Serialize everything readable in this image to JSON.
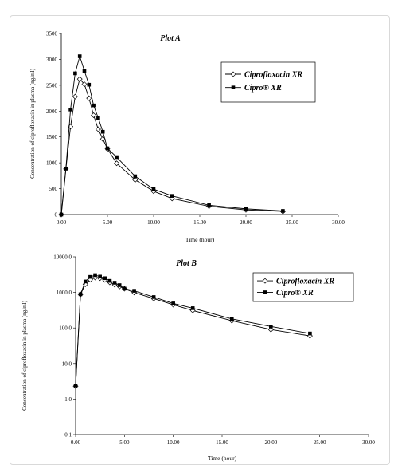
{
  "chart_data": [
    {
      "type": "line",
      "title": "Plot A",
      "xlabel": "Time (hour)",
      "ylabel": "Concentration of ciprofloxacin in plasma (ng/ml)",
      "xlim": [
        0,
        30
      ],
      "ylim": [
        0,
        3500
      ],
      "yscale": "linear",
      "x_ticks": [
        "0.00",
        "5.00",
        "10.00",
        "15.00",
        "20.00",
        "25.00",
        "30.00"
      ],
      "y_ticks": [
        "0",
        "500",
        "1000",
        "1500",
        "2000",
        "2500",
        "3000",
        "3500"
      ],
      "legend_position": "top-right",
      "series": [
        {
          "name": "Ciprofloxacin XR",
          "marker": "diamond-open",
          "x": [
            0,
            0.5,
            1,
            1.5,
            2,
            2.5,
            3,
            3.5,
            4,
            4.5,
            5,
            6,
            8,
            10,
            12,
            16,
            20,
            24
          ],
          "y": [
            0,
            880,
            1700,
            2280,
            2620,
            2520,
            2250,
            1920,
            1650,
            1460,
            1270,
            990,
            670,
            450,
            310,
            160,
            90,
            60
          ]
        },
        {
          "name": "Cipro® XR",
          "marker": "square-filled",
          "x": [
            0,
            0.5,
            1,
            1.5,
            2,
            2.5,
            3,
            3.5,
            4,
            4.5,
            5,
            6,
            8,
            10,
            12,
            16,
            20,
            24
          ],
          "y": [
            0,
            890,
            2030,
            2730,
            3060,
            2780,
            2510,
            2110,
            1870,
            1600,
            1280,
            1110,
            740,
            490,
            360,
            180,
            110,
            70
          ]
        }
      ]
    },
    {
      "type": "line",
      "title": "Plot B",
      "xlabel": "Time (hour)",
      "ylabel": "Concentration of ciprofloxacin in plasma (ng/ml)",
      "xlim": [
        0,
        30
      ],
      "ylim": [
        0.1,
        10000
      ],
      "yscale": "log",
      "x_ticks": [
        "0.00",
        "5.00",
        "10.00",
        "15.00",
        "20.00",
        "25.00",
        "30.00"
      ],
      "y_ticks": [
        "0.1",
        "1.0",
        "10.0",
        "100.0",
        "1000.0",
        "10000.0"
      ],
      "legend_position": "top-right",
      "series": [
        {
          "name": "Ciprofloxacin XR",
          "marker": "diamond-open",
          "x": [
            0,
            0.5,
            1,
            1.5,
            2,
            2.5,
            3,
            3.5,
            4,
            4.5,
            5,
            6,
            8,
            10,
            12,
            16,
            20,
            24
          ],
          "y": [
            2.3,
            880,
            1700,
            2280,
            2620,
            2520,
            2250,
            1920,
            1650,
            1460,
            1270,
            990,
            670,
            450,
            310,
            160,
            90,
            60
          ]
        },
        {
          "name": "Cipro® XR",
          "marker": "square-filled",
          "x": [
            0,
            0.5,
            1,
            1.5,
            2,
            2.5,
            3,
            3.5,
            4,
            4.5,
            5,
            6,
            8,
            10,
            12,
            16,
            20,
            24
          ],
          "y": [
            2.4,
            890,
            2030,
            2730,
            3060,
            2780,
            2510,
            2110,
            1870,
            1600,
            1280,
            1110,
            740,
            490,
            360,
            180,
            110,
            70
          ]
        }
      ]
    }
  ]
}
